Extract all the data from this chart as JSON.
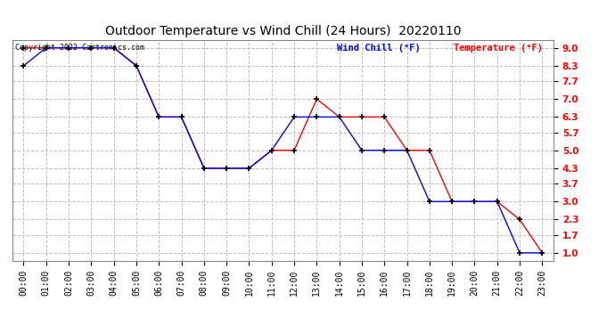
{
  "title": "Outdoor Temperature vs Wind Chill (24 Hours)  20220110",
  "copyright": "Copyright 2022 Cartronics.com",
  "legend_wind_chill": "Wind Chill (°F)",
  "legend_temperature": "Temperature (°F)",
  "x_labels": [
    "00:00",
    "01:00",
    "02:00",
    "03:00",
    "04:00",
    "05:00",
    "06:00",
    "07:00",
    "08:00",
    "09:00",
    "10:00",
    "11:00",
    "12:00",
    "13:00",
    "14:00",
    "15:00",
    "16:00",
    "17:00",
    "18:00",
    "19:00",
    "20:00",
    "21:00",
    "22:00",
    "23:00"
  ],
  "temperature_x": [
    0,
    1,
    2,
    3,
    4,
    5,
    6,
    7,
    8,
    9,
    10,
    11,
    12,
    13,
    14,
    15,
    16,
    17,
    18,
    19,
    20,
    21,
    22,
    23
  ],
  "temperature_y": [
    9.0,
    9.0,
    9.0,
    9.0,
    9.0,
    8.3,
    6.3,
    6.3,
    4.3,
    4.3,
    4.3,
    5.0,
    5.0,
    7.0,
    6.3,
    6.3,
    6.3,
    5.0,
    5.0,
    3.0,
    3.0,
    3.0,
    2.3,
    1.0
  ],
  "wind_chill_x": [
    0,
    1,
    2,
    3,
    4,
    5,
    6,
    7,
    8,
    9,
    10,
    11,
    12,
    13,
    14,
    15,
    16,
    17,
    18,
    19,
    20,
    21,
    22,
    23
  ],
  "wind_chill_y": [
    8.3,
    9.0,
    9.0,
    9.0,
    9.0,
    8.3,
    6.3,
    6.3,
    4.3,
    4.3,
    4.3,
    5.0,
    6.3,
    6.3,
    6.3,
    5.0,
    5.0,
    5.0,
    3.0,
    3.0,
    3.0,
    3.0,
    1.0,
    1.0
  ],
  "ylim_min": 0.7,
  "ylim_max": 9.3,
  "yticks": [
    1.0,
    1.7,
    2.3,
    3.0,
    3.7,
    4.3,
    5.0,
    5.7,
    6.3,
    7.0,
    7.7,
    8.3,
    9.0
  ],
  "temperature_color": "red",
  "wind_chill_color": "blue",
  "marker_color": "black",
  "background_color": "white",
  "grid_color": "#c0c0c0",
  "title_color": "black",
  "copyright_color": "black",
  "legend_wc_color": "blue",
  "legend_temp_color": "red"
}
